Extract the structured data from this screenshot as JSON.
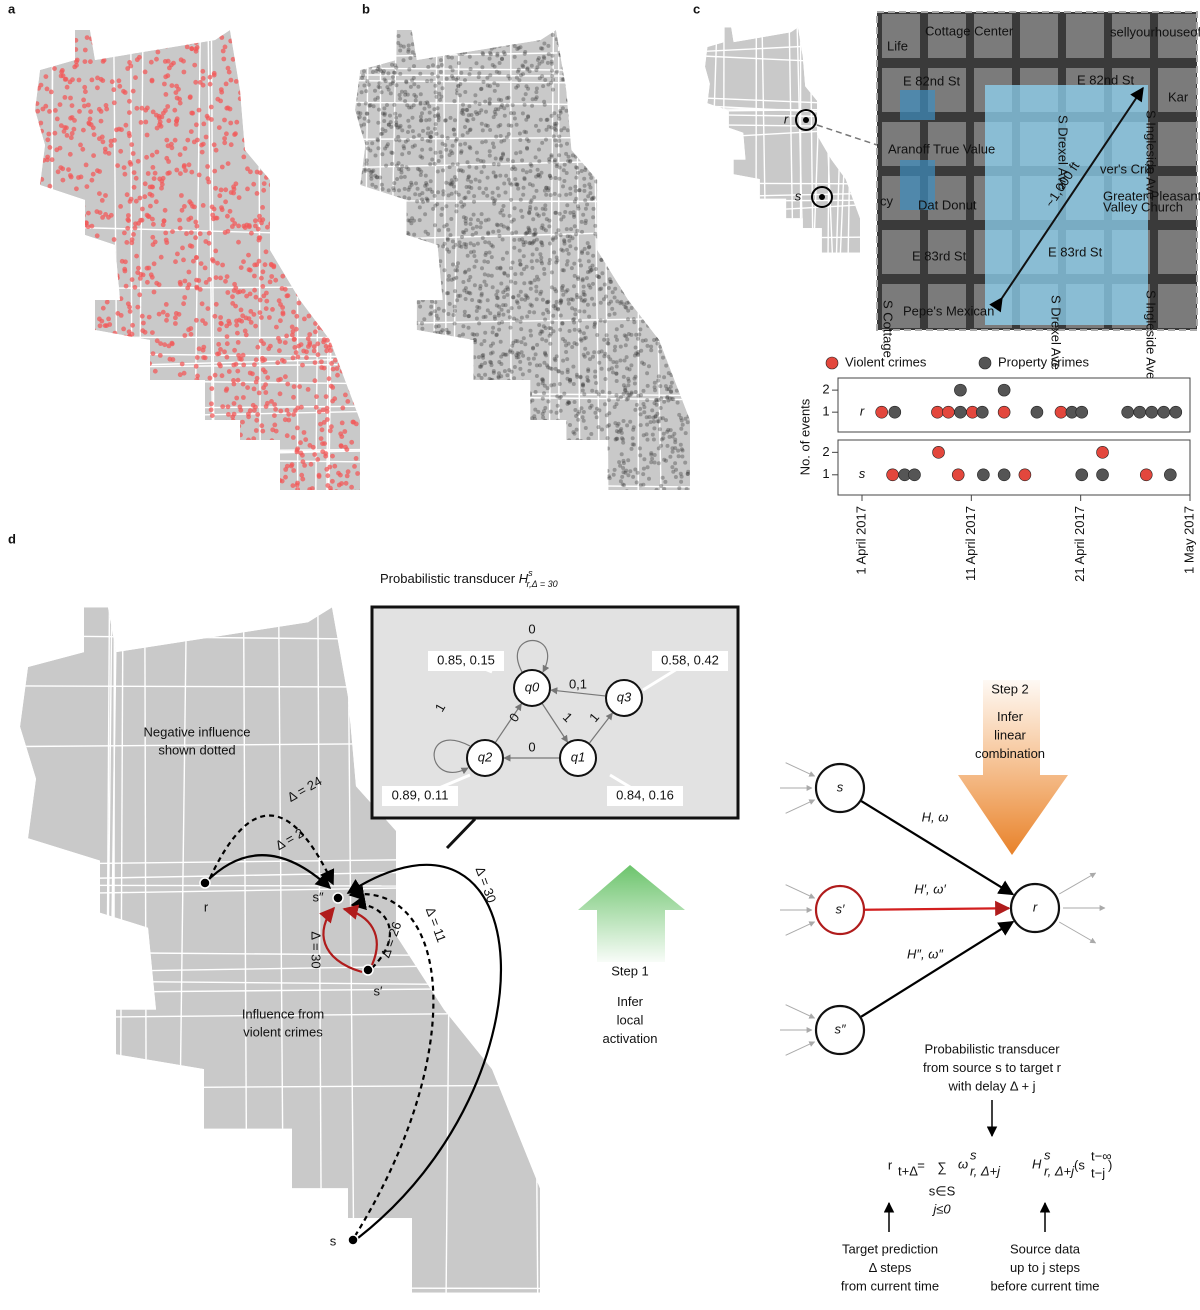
{
  "panels": {
    "a": "a",
    "b": "b",
    "c": "c",
    "d": "d"
  },
  "minimap": {
    "r": "r",
    "s": "s"
  },
  "inset": {
    "labels": [
      "Cottage Center",
      "sellyourhouseof",
      "Life",
      "E 82nd St",
      "E 82nd St",
      "Aranoff True Value",
      "ver's Crib",
      "Greater Pleasant",
      "Valley Church",
      "cy",
      "Dat Donut",
      "E 83rd St",
      "E 83rd St",
      "Pepe's Mexican",
      "S Drexel Ave",
      "S Drexel Ave",
      "S Ingleside Ave",
      "S Ingleside Ave",
      "Kar",
      "S Cottage"
    ],
    "scale": "~1,000 ft"
  },
  "timeline": {
    "ylabel": "No. of events",
    "rows": [
      "r",
      "s"
    ],
    "xlim": [
      0,
      30
    ],
    "xticks": [
      {
        "value": 0,
        "label": "1 April 2017"
      },
      {
        "value": 10,
        "label": "11 April 2017"
      },
      {
        "value": 20,
        "label": "21 April 2017"
      },
      {
        "value": 30,
        "label": "1 May 2017"
      }
    ],
    "ylim": [
      0.1,
      2.55
    ],
    "yticks": [
      1,
      2
    ],
    "series": [
      {
        "name": "Violent crimes",
        "color": "#e3473d",
        "days": {
          "r": [
            1.8,
            6.9,
            7.9,
            10.1,
            13.0,
            18.2
          ],
          "s": [
            2.8,
            7.0,
            8.8,
            14.9,
            22.0,
            26.0
          ]
        },
        "levels": {
          "r": [
            1,
            1,
            1,
            1,
            1,
            1
          ],
          "s": [
            1,
            2,
            1,
            1,
            2,
            1
          ]
        }
      },
      {
        "name": "Property crimes",
        "color": "#555555",
        "days": {
          "r": [
            3.0,
            9.0,
            9.0,
            11.0,
            13.0,
            16.0,
            19.2,
            20.1,
            24.3,
            25.4,
            26.5,
            27.6,
            28.7
          ],
          "s": [
            3.9,
            4.8,
            11.1,
            13.0,
            20.1,
            22.0,
            28.2
          ]
        },
        "levels": {
          "r": [
            1,
            1,
            2,
            1,
            2,
            1,
            1,
            1,
            1,
            1,
            1,
            1,
            1
          ],
          "s": [
            1,
            1,
            1,
            1,
            1,
            1,
            1
          ]
        }
      }
    ]
  },
  "transducer": {
    "title": "Probabilistic transducer ",
    "title_H": "H",
    "title_sup": "s",
    "title_sub": "r,Δ = 30",
    "states": [
      "q0",
      "q1",
      "q2",
      "q3"
    ],
    "edge_labels": [
      "0",
      "0,1",
      "1",
      "0",
      "1",
      "1",
      "0"
    ],
    "probabilities": [
      "0.85, 0.15",
      "0.84, 0.16",
      "0.89, 0.11",
      "0.58, 0.42"
    ]
  },
  "map_d": {
    "note": [
      "Negative influence",
      "shown dotted"
    ],
    "violent": [
      "Influence from",
      "violent crimes"
    ],
    "points": [
      "r",
      "s″",
      "s′",
      "s"
    ],
    "delays": [
      "Δ = 24",
      "Δ = 2",
      "Δ = 11",
      "Δ = 30",
      "Δ = 30",
      "Δ = 26"
    ]
  },
  "step1": [
    "Step 1",
    "Infer",
    "local",
    "activation"
  ],
  "step2": [
    "Step 2",
    "Infer",
    "linear",
    "combination"
  ],
  "network": {
    "nodes": [
      "s",
      "s′",
      "s″",
      "r"
    ],
    "edges": [
      "H, ω",
      "H′, ω′",
      "H″, ω″"
    ],
    "caption": [
      "Probabilistic transducer",
      "from source s to target r",
      "with delay Δ + j"
    ]
  },
  "formula": {
    "lhs": "r",
    "lhs_sub": "t+Δ",
    "eq": "=",
    "sum": "∑",
    "under": [
      "s∈S",
      "j≤0"
    ],
    "w": "ω",
    "w_sup": "s",
    "w_sub": "r, Δ+j",
    "h": "H",
    "h_sup": "s",
    "h_sub": "r, Δ+j",
    "open": "(s",
    "arg_sup": "t−∞",
    "arg_sub": "t−j",
    "close": ")"
  },
  "notes": {
    "target": [
      "Target prediction",
      "Δ steps",
      "from current time"
    ],
    "source": [
      "Source data",
      "up to j steps",
      "before current time"
    ]
  }
}
